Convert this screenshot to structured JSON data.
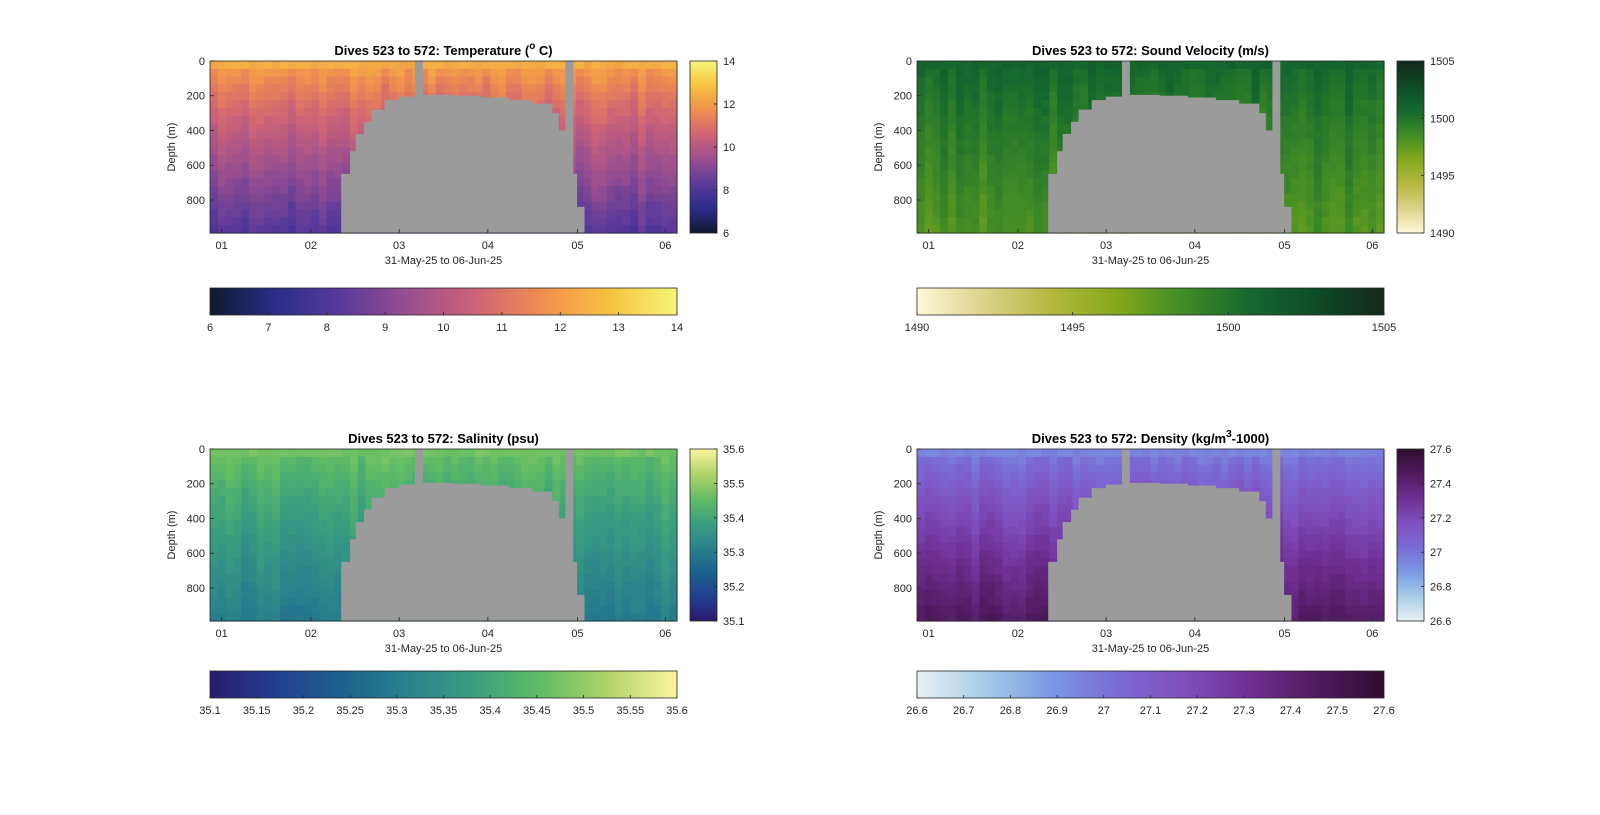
{
  "figure": {
    "background": "#ffffff",
    "mask_color": "#9b9b9b",
    "surface_layer_color": "#2b4d2e"
  },
  "chart_data": [
    {
      "id": "temperature",
      "type": "heatmap",
      "title_main": "Dives 523 to 572: Temperature (",
      "title_sup": "o",
      "title_tail": " C)",
      "xlabel": "31-May-25 to 06-Jun-25",
      "ylabel": "Depth (m)",
      "x_ticks": [
        "01",
        "02",
        "03",
        "04",
        "05",
        "06"
      ],
      "y_ticks": [
        "0",
        "200",
        "400",
        "600",
        "800"
      ],
      "ylim": [
        0,
        990
      ],
      "y_reversed": true,
      "colormap_stops": [
        "#0d1b2e",
        "#2c2c8c",
        "#5b3a9a",
        "#9b4f8f",
        "#cf6376",
        "#f08f4e",
        "#f7c33f",
        "#f5f57a"
      ],
      "clim": [
        6,
        14
      ],
      "side_colorbar_ticks": [
        "14",
        "12",
        "10",
        "8",
        "6"
      ],
      "bottom_colorbar_ticks": [
        "6",
        "7",
        "8",
        "9",
        "10",
        "11",
        "12",
        "13",
        "14"
      ],
      "surface_value": 12.3,
      "bottom_value": 8.1
    },
    {
      "id": "sound-velocity",
      "type": "heatmap",
      "title_main": "Dives 523 to 572: Sound Velocity (m/s)",
      "title_sup": "",
      "title_tail": "",
      "xlabel": "31-May-25 to 06-Jun-25",
      "ylabel": "Depth (m)",
      "x_ticks": [
        "01",
        "02",
        "03",
        "04",
        "05",
        "06"
      ],
      "y_ticks": [
        "0",
        "200",
        "400",
        "600",
        "800"
      ],
      "ylim": [
        0,
        990
      ],
      "y_reversed": true,
      "colormap_stops": [
        "#fdf9d8",
        "#ddd28a",
        "#b4b83f",
        "#82a81c",
        "#3f8b26",
        "#14682e",
        "#0e4a27",
        "#14271c"
      ],
      "clim": [
        1490,
        1505
      ],
      "side_colorbar_ticks": [
        "1505",
        "1500",
        "1495",
        "1490"
      ],
      "bottom_colorbar_ticks": [
        "1490",
        "1495",
        "1500",
        "1505"
      ],
      "surface_value": 1501,
      "bottom_value": 1498
    },
    {
      "id": "salinity",
      "type": "heatmap",
      "title_main": "Dives 523 to 572: Salinity (psu)",
      "title_sup": "",
      "title_tail": "",
      "xlabel": "31-May-25 to 06-Jun-25",
      "ylabel": "Depth (m)",
      "x_ticks": [
        "01",
        "02",
        "03",
        "04",
        "05",
        "06"
      ],
      "y_ticks": [
        "0",
        "200",
        "400",
        "600",
        "800"
      ],
      "ylim": [
        0,
        990
      ],
      "y_reversed": true,
      "colormap_stops": [
        "#2a1b6e",
        "#223f8f",
        "#1b628e",
        "#2a838c",
        "#3aa07e",
        "#63bd63",
        "#b3d56a",
        "#fbf4a0"
      ],
      "clim": [
        35.1,
        35.6
      ],
      "side_colorbar_ticks": [
        "35.6",
        "35.5",
        "35.4",
        "35.3",
        "35.2",
        "35.1"
      ],
      "bottom_colorbar_ticks": [
        "35.1",
        "35.15",
        "35.2",
        "35.25",
        "35.3",
        "35.35",
        "35.4",
        "35.45",
        "35.5",
        "35.55",
        "35.6"
      ],
      "surface_value": 35.47,
      "bottom_value": 35.3
    },
    {
      "id": "density",
      "type": "heatmap",
      "title_main": "Dives 523 to 572: Density (kg/m",
      "title_sup": "3",
      "title_tail": "-1000)",
      "xlabel": "31-May-25 to 06-Jun-25",
      "ylabel": "Depth (m)",
      "x_ticks": [
        "01",
        "02",
        "03",
        "04",
        "05",
        "06"
      ],
      "y_ticks": [
        "0",
        "200",
        "400",
        "600",
        "800"
      ],
      "ylim": [
        0,
        990
      ],
      "y_reversed": true,
      "colormap_stops": [
        "#e8f1f2",
        "#a7cde8",
        "#7a98e3",
        "#7a6bd6",
        "#7f4fbe",
        "#6e2f92",
        "#501a5f",
        "#2e0d2e"
      ],
      "clim": [
        26.6,
        27.6
      ],
      "side_colorbar_ticks": [
        "27.6",
        "27.4",
        "27.2",
        "27",
        "26.8",
        "26.6"
      ],
      "bottom_colorbar_ticks": [
        "26.6",
        "26.7",
        "26.8",
        "26.9",
        "27",
        "27.1",
        "27.2",
        "27.3",
        "27.4",
        "27.5",
        "27.6"
      ],
      "surface_value": 26.95,
      "bottom_value": 27.45
    }
  ]
}
